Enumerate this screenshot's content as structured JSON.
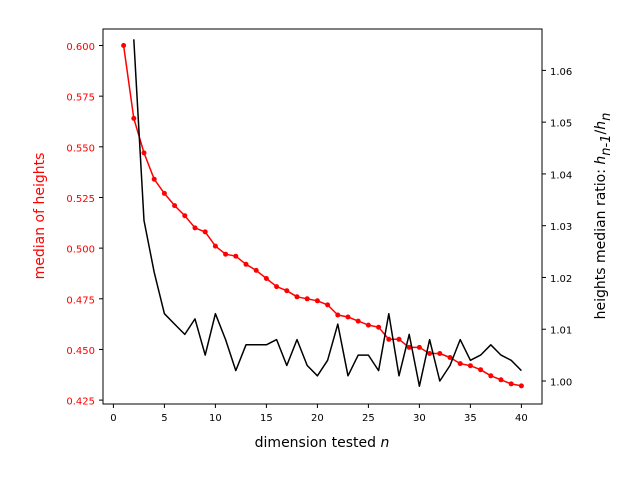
{
  "chart_data": {
    "type": "line",
    "xlabel": "dimension tested n",
    "ylabel_left": "median of heights",
    "ylabel_right": "heights median ratio: h_{n-1}/h_n",
    "xlim": [
      0,
      41
    ],
    "xticks": [
      0,
      5,
      10,
      15,
      20,
      25,
      30,
      35,
      40
    ],
    "ylim_left": [
      0.425,
      0.6
    ],
    "yticks_left": [
      0.425,
      0.45,
      0.475,
      0.5,
      0.525,
      0.55,
      0.575,
      0.6
    ],
    "ylim_right": [
      1.0,
      1.06
    ],
    "yticks_right": [
      1.0,
      1.01,
      1.02,
      1.03,
      1.04,
      1.05,
      1.06
    ],
    "grid": false,
    "colors": {
      "left": "#ff0000",
      "right": "#000000"
    },
    "series": [
      {
        "axis": "left",
        "color": "#ff0000",
        "marker": "dot",
        "x": [
          1,
          2,
          3,
          4,
          5,
          6,
          7,
          8,
          9,
          10,
          11,
          12,
          13,
          14,
          15,
          16,
          17,
          18,
          19,
          20,
          21,
          22,
          23,
          24,
          25,
          26,
          27,
          28,
          29,
          30,
          31,
          32,
          33,
          34,
          35,
          36,
          37,
          38,
          39,
          40
        ],
        "values": [
          0.6,
          0.564,
          0.547,
          0.534,
          0.527,
          0.521,
          0.516,
          0.51,
          0.508,
          0.501,
          0.497,
          0.496,
          0.492,
          0.489,
          0.485,
          0.481,
          0.479,
          0.476,
          0.475,
          0.474,
          0.472,
          0.467,
          0.466,
          0.464,
          0.462,
          0.461,
          0.455,
          0.455,
          0.451,
          0.451,
          0.448,
          0.448,
          0.446,
          0.443,
          0.442,
          0.44,
          0.437,
          0.435,
          0.433,
          0.432
        ]
      },
      {
        "axis": "right",
        "color": "#000000",
        "marker": "none",
        "x": [
          2,
          3,
          4,
          5,
          6,
          7,
          8,
          9,
          10,
          11,
          12,
          13,
          14,
          15,
          16,
          17,
          18,
          19,
          20,
          21,
          22,
          23,
          24,
          25,
          26,
          27,
          28,
          29,
          30,
          31,
          32,
          33,
          34,
          35,
          36,
          37,
          38,
          39,
          40
        ],
        "values": [
          1.066,
          1.031,
          1.021,
          1.013,
          1.011,
          1.009,
          1.012,
          1.005,
          1.013,
          1.008,
          1.002,
          1.007,
          1.007,
          1.007,
          1.008,
          1.003,
          1.008,
          1.003,
          1.001,
          1.004,
          1.011,
          1.001,
          1.005,
          1.005,
          1.002,
          1.013,
          1.001,
          1.009,
          0.999,
          1.008,
          1.0,
          1.003,
          1.008,
          1.004,
          1.005,
          1.007,
          1.005,
          1.004,
          1.002
        ]
      }
    ]
  }
}
